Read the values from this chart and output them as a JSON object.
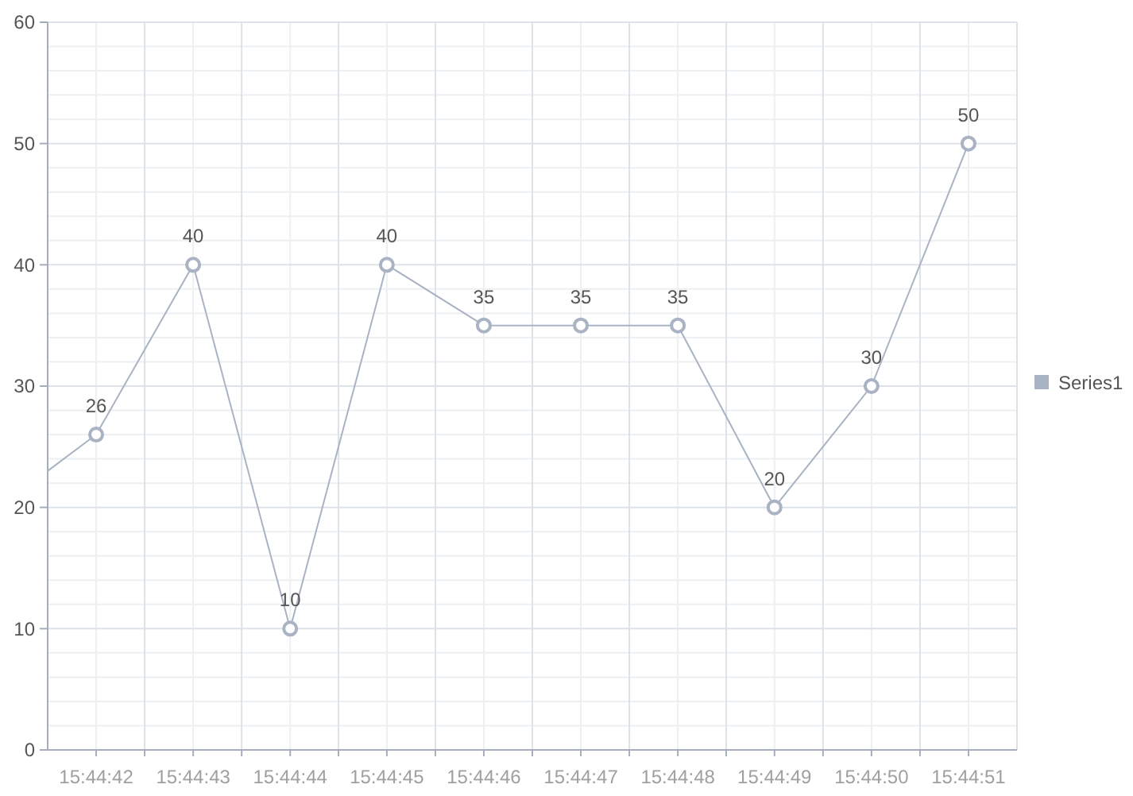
{
  "chart_data": {
    "type": "line",
    "x": [
      15.744861,
      15.745,
      15.745278,
      15.745556,
      15.745833,
      15.746111,
      15.746389,
      15.746667,
      15.746944,
      15.747222,
      15.7475
    ],
    "series": [
      {
        "name": "Series1",
        "color": "#a9b3c3",
        "values": [
          23,
          26,
          40,
          10,
          40,
          35,
          35,
          35,
          20,
          30,
          50
        ],
        "value_labels": [
          null,
          "26",
          "40",
          "10",
          "40",
          "35",
          "35",
          "35",
          "20",
          "30",
          "50"
        ]
      }
    ],
    "xlim": [
      15.744861,
      15.747639
    ],
    "xticks": [
      {
        "value": 15.745,
        "label": "15:44:42"
      },
      {
        "value": 15.745278,
        "label": "15:44:43"
      },
      {
        "value": 15.745556,
        "label": "15:44:44"
      },
      {
        "value": 15.745833,
        "label": "15:44:45"
      },
      {
        "value": 15.746111,
        "label": "15:44:46"
      },
      {
        "value": 15.746389,
        "label": "15:44:47"
      },
      {
        "value": 15.746667,
        "label": "15:44:48"
      },
      {
        "value": 15.746944,
        "label": "15:44:49"
      },
      {
        "value": 15.747222,
        "label": "15:44:50"
      },
      {
        "value": 15.7475,
        "label": "15:44:51"
      }
    ],
    "ylim": [
      0,
      60
    ],
    "yticks": [
      0,
      10,
      20,
      30,
      40,
      50,
      60
    ],
    "grid": true,
    "legend": "right",
    "marker": "circle",
    "line_style": "solid"
  }
}
